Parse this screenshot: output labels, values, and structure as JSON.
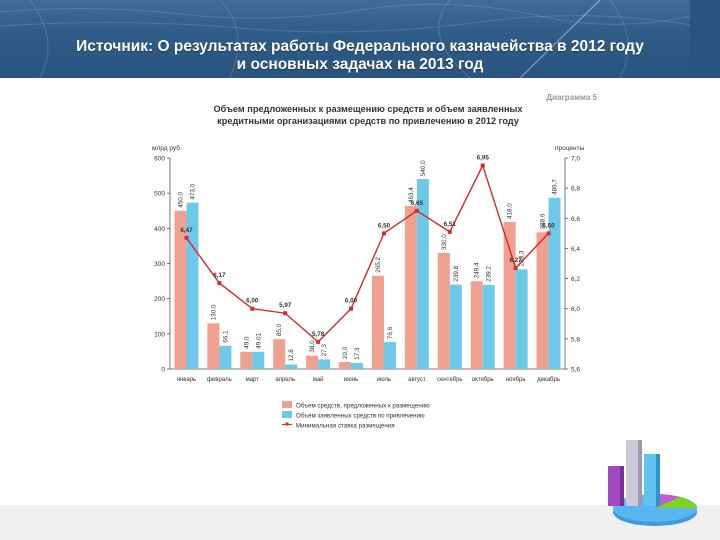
{
  "slide": {
    "heading_line1": "Источник: О результатах работы Федерального казначейства в 2012 году",
    "heading_line2": "и основных задачах на 2013 год"
  },
  "chart_data": {
    "type": "bar",
    "diagram_label": "Диаграмма 5",
    "title_line1": "Объем предложенных к размещению средств и объем заявленных",
    "title_line2": "кредитными организациями средств по привлечению в 2012 году",
    "left_axis_label": "млрд руб.",
    "right_axis_label": "проценты",
    "left_ylim": [
      0,
      600
    ],
    "left_ticks": [
      "0",
      "100",
      "200",
      "300",
      "400",
      "500",
      "600"
    ],
    "right_ylim": [
      5.6,
      7.0
    ],
    "right_ticks": [
      "5,6",
      "5,8",
      "6,0",
      "6,2",
      "6,4",
      "6,6",
      "6,8",
      "7,0"
    ],
    "categories": [
      "январь",
      "февраль",
      "март",
      "апрель",
      "май",
      "июнь",
      "июль",
      "август",
      "сентябрь",
      "октябрь",
      "ноябрь",
      "декабрь"
    ],
    "series": [
      {
        "name": "Объем средств, предложенных к размещению",
        "kind": "bar",
        "color": "#f0a08e",
        "values": [
          450.0,
          130.0,
          49.0,
          85.0,
          38.0,
          20.0,
          265.2,
          463.4,
          330.0,
          249.4,
          418.0,
          388.6
        ],
        "labels": [
          "450,0",
          "130,0",
          "49,0",
          "85,0",
          "38,0",
          "20,0",
          "265,2",
          "463,4",
          "330,0",
          "249,4",
          "418,0",
          "388,6"
        ]
      },
      {
        "name": "Объем заявленных средств по привлечению",
        "kind": "bar",
        "color": "#6cc9ea",
        "values": [
          473.0,
          66.1,
          49.0,
          12.8,
          27.3,
          17.3,
          76.6,
          540.0,
          239.8,
          239.2,
          283.3,
          486.7
        ],
        "labels": [
          "473,0",
          "66,1",
          "49,01",
          "12,8",
          "27,3",
          "17,3",
          "76,6",
          "540,0",
          "239,8",
          "239,2",
          "283,3",
          "486,7"
        ]
      },
      {
        "name": "Минимальная ставка размещения",
        "kind": "line",
        "axis": "right",
        "color": "#d42b2b",
        "values": [
          6.47,
          6.17,
          6.0,
          5.97,
          5.78,
          6.0,
          6.5,
          6.65,
          6.51,
          6.95,
          6.27,
          6.5
        ],
        "labels": [
          "6,47",
          "6,17",
          "6,00",
          "5,97",
          "5,78",
          "6,00",
          "6,50",
          "6,65",
          "6,51",
          "6,95",
          "6,27",
          "6,50"
        ]
      }
    ],
    "legend_position": "bottom-center",
    "grid": false
  }
}
